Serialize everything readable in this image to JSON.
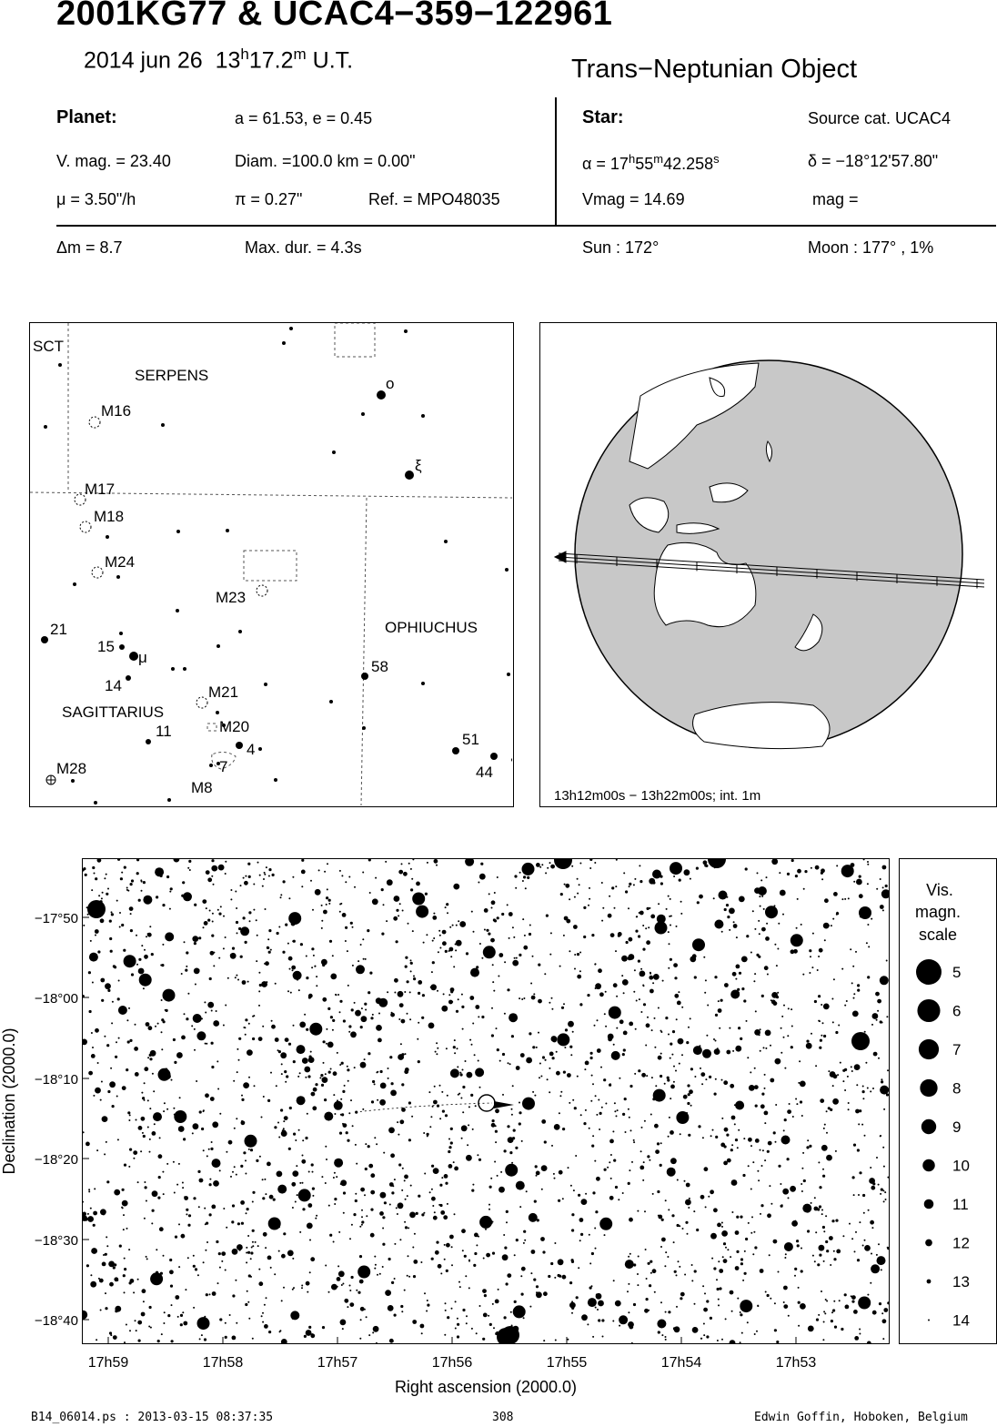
{
  "header": {
    "title": "2001KG77  &  UCAC4−359−122961",
    "date": "2014 jun 26",
    "time_h": "13",
    "time_h_unit": "h",
    "time_m": "17.2",
    "time_m_unit": "m",
    "time_suffix": "U.T.",
    "object_type": "Trans−Neptunian Object"
  },
  "planet": {
    "heading": "Planet:",
    "orbit": "a = 61.53, e = 0.45",
    "vmag": "V. mag. = 23.40",
    "diam": "Diam. =100.0 km = 0.00\"",
    "mu": "μ =  3.50\"/h",
    "pi": "π =  0.27\"",
    "ref": "Ref. = MPO48035",
    "dm": "Δm = 8.7",
    "maxdur": "Max. dur. = 4.3s"
  },
  "star": {
    "heading": "Star:",
    "source": "Source cat.  UCAC4",
    "alpha_prefix": "α = 17",
    "alpha_h": "h",
    "alpha_mid": "55",
    "alpha_m": "m",
    "alpha_sec": "42.258",
    "alpha_s": "s",
    "delta": "δ = −18°12'57.80\"",
    "vmag": "Vmag = 14.69",
    "mag": "mag =",
    "sun": "Sun : 172°",
    "moon": "Moon : 177° ,  1%"
  },
  "finder": {
    "constellations": [
      "SCT",
      "SERPENS",
      "OPHIUCHUS",
      "SAGITTARIUS"
    ],
    "objects": [
      "M16",
      "M17",
      "M18",
      "M24",
      "M23",
      "M21",
      "M20",
      "M8",
      "M28"
    ],
    "star_labels": [
      "21",
      "15",
      "μ",
      "14",
      "11",
      "4",
      "7",
      "58",
      "51",
      "44",
      "o",
      "ξ"
    ]
  },
  "globe": {
    "caption": "13h12m00s − 13h22m00s; int.  1m"
  },
  "chart_data": {
    "type": "scatter",
    "xlabel": "Right ascension (2000.0)",
    "ylabel": "Declination (2000.0)",
    "x_ticks": [
      "17h59",
      "17h58",
      "17h57",
      "17h56",
      "17h55",
      "17h54",
      "17h53"
    ],
    "y_ticks": [
      "−17°50",
      "−18°00",
      "−18°10",
      "−18°20",
      "−18°30",
      "−18°40"
    ],
    "target": {
      "ra": "17h55m42.258s",
      "dec": "−18°12'57.80\""
    },
    "legend": {
      "title": [
        "Vis.",
        "magn.",
        "scale"
      ],
      "magnitudes": [
        "5",
        "6",
        "7",
        "8",
        "9",
        "10",
        "11",
        "12",
        "13",
        "14"
      ]
    }
  },
  "footer": {
    "file": "B14_06014.ps : 2013-03-15 08:37:35",
    "page": "308",
    "author": "Edwin Goffin, Hoboken, Belgium"
  }
}
